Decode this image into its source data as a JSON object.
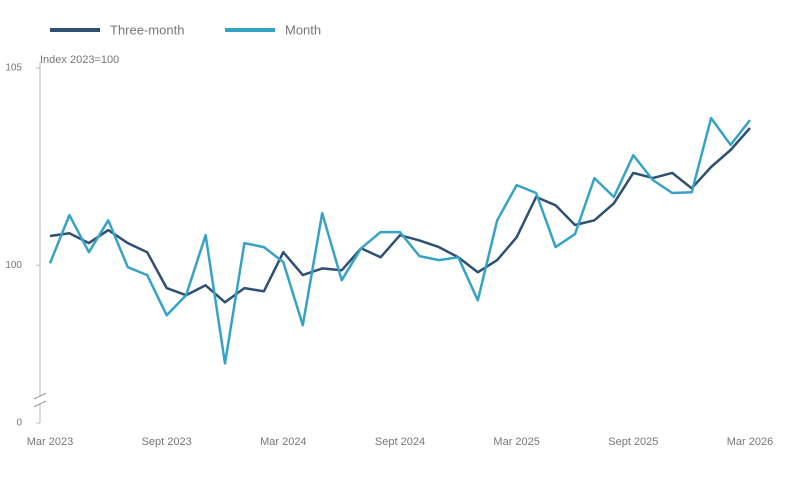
{
  "chart_data": {
    "type": "line",
    "y_axis_label": "Index 2023=100",
    "categories": [
      "Mar 2023",
      null,
      null,
      null,
      null,
      null,
      "Sept 2023",
      null,
      null,
      null,
      null,
      null,
      "Mar 2024",
      null,
      null,
      null,
      null,
      null,
      "Sept 2024",
      null,
      null,
      null,
      null,
      null,
      "Mar 2025",
      null,
      null,
      null,
      null,
      null,
      "Sept 2025",
      null,
      null,
      null,
      null,
      null,
      "Mar 2026"
    ],
    "series": [
      {
        "name": "Three-month",
        "color": "#2e5073",
        "values": [
          100.74,
          100.81,
          100.56,
          100.89,
          100.56,
          100.33,
          99.42,
          99.24,
          99.49,
          99.06,
          99.42,
          99.34,
          100.33,
          99.75,
          99.92,
          99.87,
          100.43,
          100.2,
          100.76,
          100.63,
          100.46,
          100.2,
          99.82,
          100.13,
          100.71,
          101.73,
          101.52,
          101.02,
          101.14,
          101.57,
          102.34,
          102.21,
          102.34,
          101.95,
          102.49,
          102.92,
          103.48
        ]
      },
      {
        "name": "Month",
        "color": "#36a3c6",
        "values": [
          100.05,
          101.27,
          100.33,
          101.14,
          99.95,
          99.75,
          98.73,
          99.24,
          100.76,
          97.51,
          100.56,
          100.46,
          100.08,
          98.48,
          101.32,
          99.62,
          100.43,
          100.84,
          100.84,
          100.23,
          100.13,
          100.2,
          99.11,
          101.14,
          102.03,
          101.83,
          100.46,
          100.79,
          102.21,
          101.73,
          102.79,
          102.16,
          101.83,
          101.85,
          103.73,
          103.05,
          103.68
        ]
      }
    ],
    "ylim": [
      96,
      105
    ],
    "yticks": [
      0,
      100,
      105
    ],
    "axis_break": true,
    "grid": false
  }
}
